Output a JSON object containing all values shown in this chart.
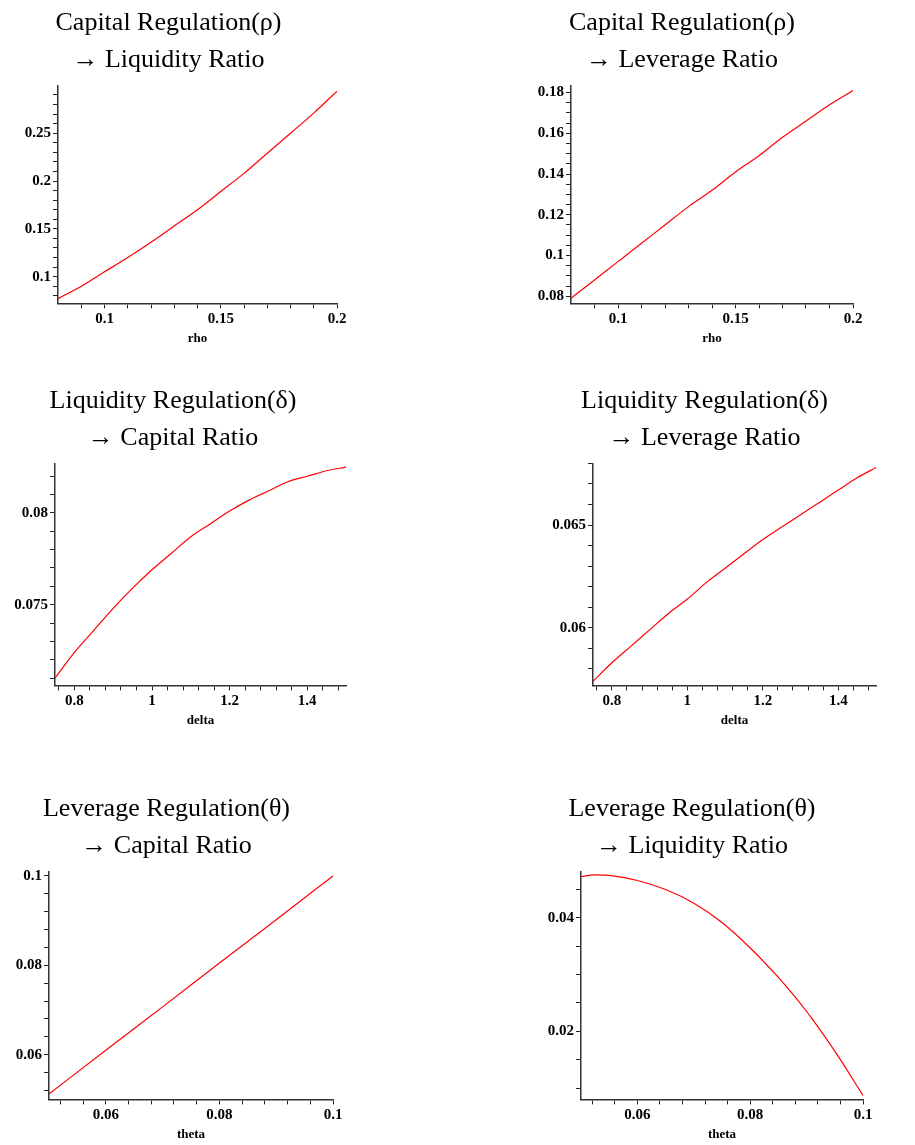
{
  "chart_data": [
    {
      "type": "line",
      "title": "Capital Regulation(ρ)\n→ Liquidity Ratio",
      "xlabel": "rho",
      "color": "#ff0000",
      "xlim": [
        0.08,
        0.2
      ],
      "xticks": [
        {
          "value": 0.09,
          "label": null
        },
        0.1,
        {
          "value": 0.11,
          "label": null
        },
        {
          "value": 0.12,
          "label": null
        },
        {
          "value": 0.13,
          "label": null
        },
        {
          "value": 0.14,
          "label": null
        },
        0.15,
        {
          "value": 0.16,
          "label": null
        },
        {
          "value": 0.17,
          "label": null
        },
        {
          "value": 0.18,
          "label": null
        },
        {
          "value": 0.19,
          "label": null
        },
        0.2
      ],
      "ylim": [
        0.072,
        0.3
      ],
      "yticks": [
        {
          "value": 0.08,
          "label": null
        },
        {
          "value": 0.09,
          "label": null
        },
        0.1,
        {
          "value": 0.11,
          "label": null
        },
        {
          "value": 0.12,
          "label": null
        },
        {
          "value": 0.13,
          "label": null
        },
        {
          "value": 0.14,
          "label": null
        },
        0.15,
        {
          "value": 0.16,
          "label": null
        },
        {
          "value": 0.17,
          "label": null
        },
        {
          "value": 0.18,
          "label": null
        },
        {
          "value": 0.19,
          "label": null
        },
        0.2,
        {
          "value": 0.21,
          "label": null
        },
        {
          "value": 0.22,
          "label": null
        },
        {
          "value": 0.23,
          "label": null
        },
        {
          "value": 0.24,
          "label": null
        },
        0.25,
        {
          "value": 0.26,
          "label": null
        },
        {
          "value": 0.27,
          "label": null
        },
        {
          "value": 0.28,
          "label": null
        },
        {
          "value": 0.29,
          "label": null
        }
      ],
      "x": [
        0.08,
        0.09,
        0.1,
        0.11,
        0.12,
        0.13,
        0.14,
        0.15,
        0.16,
        0.17,
        0.18,
        0.19,
        0.2
      ],
      "values": [
        0.077,
        0.09,
        0.105,
        0.12,
        0.136,
        0.153,
        0.17,
        0.189,
        0.208,
        0.229,
        0.25,
        0.271,
        0.294
      ]
    },
    {
      "type": "line",
      "title": "Capital Regulation(ρ)\n→ Leverage Ratio",
      "xlabel": "rho",
      "color": "#ff0000",
      "xlim": [
        0.08,
        0.2
      ],
      "xticks": [
        {
          "value": 0.09,
          "label": null
        },
        0.1,
        {
          "value": 0.11,
          "label": null
        },
        {
          "value": 0.12,
          "label": null
        },
        {
          "value": 0.13,
          "label": null
        },
        {
          "value": 0.14,
          "label": null
        },
        0.15,
        {
          "value": 0.16,
          "label": null
        },
        {
          "value": 0.17,
          "label": null
        },
        {
          "value": 0.18,
          "label": null
        },
        {
          "value": 0.19,
          "label": null
        },
        0.2
      ],
      "ylim": [
        0.0765,
        0.1835
      ],
      "yticks": [
        0.08,
        {
          "value": 0.085,
          "label": null
        },
        {
          "value": 0.09,
          "label": null
        },
        {
          "value": 0.095,
          "label": null
        },
        0.1,
        {
          "value": 0.105,
          "label": null
        },
        {
          "value": 0.11,
          "label": null
        },
        {
          "value": 0.115,
          "label": null
        },
        0.12,
        {
          "value": 0.125,
          "label": null
        },
        {
          "value": 0.13,
          "label": null
        },
        {
          "value": 0.135,
          "label": null
        },
        0.14,
        {
          "value": 0.145,
          "label": null
        },
        {
          "value": 0.15,
          "label": null
        },
        {
          "value": 0.155,
          "label": null
        },
        0.16,
        {
          "value": 0.165,
          "label": null
        },
        {
          "value": 0.17,
          "label": null
        },
        {
          "value": 0.175,
          "label": null
        },
        0.18
      ],
      "x": [
        0.08,
        0.09,
        0.1,
        0.11,
        0.12,
        0.13,
        0.14,
        0.15,
        0.16,
        0.17,
        0.18,
        0.19,
        0.2
      ],
      "values": [
        0.079,
        0.088,
        0.097,
        0.106,
        0.115,
        0.124,
        0.132,
        0.141,
        0.149,
        0.158,
        0.166,
        0.174,
        0.181
      ]
    },
    {
      "type": "line",
      "title": "Liquidity Regulation(δ)\n→ Capital Ratio",
      "xlabel": "delta",
      "color": "#ff0000",
      "xlim": [
        0.75,
        1.5
      ],
      "xticks": [
        {
          "value": 0.76,
          "label": null
        },
        0.8,
        {
          "value": 0.84,
          "label": null
        },
        {
          "value": 0.88,
          "label": null
        },
        {
          "value": 0.92,
          "label": null
        },
        {
          "value": 0.96,
          "label": null
        },
        1,
        {
          "value": 1.04,
          "label": null
        },
        {
          "value": 1.08,
          "label": null
        },
        {
          "value": 1.12,
          "label": null
        },
        {
          "value": 1.16,
          "label": null
        },
        1.2,
        {
          "value": 1.24,
          "label": null
        },
        {
          "value": 1.28,
          "label": null
        },
        {
          "value": 1.32,
          "label": null
        },
        {
          "value": 1.36,
          "label": null
        },
        1.4,
        {
          "value": 1.44,
          "label": null
        },
        {
          "value": 1.48,
          "label": null
        }
      ],
      "ylim": [
        0.0706,
        0.0827
      ],
      "yticks": [
        {
          "value": 0.071,
          "label": null
        },
        {
          "value": 0.072,
          "label": null
        },
        {
          "value": 0.073,
          "label": null
        },
        {
          "value": 0.074,
          "label": null
        },
        0.075,
        {
          "value": 0.076,
          "label": null
        },
        {
          "value": 0.077,
          "label": null
        },
        {
          "value": 0.078,
          "label": null
        },
        {
          "value": 0.079,
          "label": null
        },
        0.08,
        {
          "value": 0.081,
          "label": null
        },
        {
          "value": 0.082,
          "label": null
        }
      ],
      "x": [
        0.75,
        0.8,
        0.85,
        0.9,
        0.95,
        1,
        1.05,
        1.1,
        1.15,
        1.2,
        1.25,
        1.3,
        1.35,
        1.4,
        1.45,
        1.5
      ],
      "values": [
        0.071,
        0.0724,
        0.0736,
        0.0748,
        0.0759,
        0.0769,
        0.0778,
        0.0787,
        0.0794,
        0.0801,
        0.0807,
        0.0812,
        0.0817,
        0.082,
        0.0823,
        0.0825
      ]
    },
    {
      "type": "line",
      "title": "Liquidity Regulation(δ)\n→ Leverage Ratio",
      "xlabel": "delta",
      "color": "#ff0000",
      "xlim": [
        0.75,
        1.5
      ],
      "xticks": [
        {
          "value": 0.76,
          "label": null
        },
        0.8,
        {
          "value": 0.84,
          "label": null
        },
        {
          "value": 0.88,
          "label": null
        },
        {
          "value": 0.92,
          "label": null
        },
        {
          "value": 0.96,
          "label": null
        },
        1,
        {
          "value": 1.04,
          "label": null
        },
        {
          "value": 1.08,
          "label": null
        },
        {
          "value": 1.12,
          "label": null
        },
        {
          "value": 1.16,
          "label": null
        },
        1.2,
        {
          "value": 1.24,
          "label": null
        },
        {
          "value": 1.28,
          "label": null
        },
        {
          "value": 1.32,
          "label": null
        },
        {
          "value": 1.36,
          "label": null
        },
        1.4,
        {
          "value": 1.44,
          "label": null
        },
        {
          "value": 1.48,
          "label": null
        }
      ],
      "ylim": [
        0.0572,
        0.068
      ],
      "yticks": [
        {
          "value": 0.058,
          "label": null
        },
        {
          "value": 0.059,
          "label": null
        },
        0.06,
        {
          "value": 0.061,
          "label": null
        },
        {
          "value": 0.062,
          "label": null
        },
        {
          "value": 0.063,
          "label": null
        },
        {
          "value": 0.064,
          "label": null
        },
        0.065,
        {
          "value": 0.066,
          "label": null
        },
        {
          "value": 0.067,
          "label": null
        },
        {
          "value": 0.068,
          "label": null
        }
      ],
      "x": [
        0.75,
        0.8,
        0.85,
        0.9,
        0.95,
        1,
        1.05,
        1.1,
        1.15,
        1.2,
        1.25,
        1.3,
        1.35,
        1.4,
        1.45,
        1.5
      ],
      "values": [
        0.0574,
        0.0583,
        0.0591,
        0.0599,
        0.0607,
        0.0614,
        0.0622,
        0.0629,
        0.0636,
        0.0643,
        0.0649,
        0.0655,
        0.0661,
        0.0667,
        0.0673,
        0.0678
      ]
    },
    {
      "type": "line",
      "title": "Leverage Regulation(θ)\n→ Capital Ratio",
      "xlabel": "theta",
      "color": "#ff0000",
      "xlim": [
        0.05,
        0.1
      ],
      "xticks": [
        {
          "value": 0.052,
          "label": null
        },
        {
          "value": 0.056,
          "label": null
        },
        0.06,
        {
          "value": 0.064,
          "label": null
        },
        {
          "value": 0.068,
          "label": null
        },
        {
          "value": 0.072,
          "label": null
        },
        {
          "value": 0.076,
          "label": null
        },
        0.08,
        {
          "value": 0.084,
          "label": null
        },
        {
          "value": 0.088,
          "label": null
        },
        {
          "value": 0.092,
          "label": null
        },
        {
          "value": 0.096,
          "label": null
        },
        0.1
      ],
      "ylim": [
        0.05,
        0.101
      ],
      "yticks": [
        {
          "value": 0.052,
          "label": null
        },
        {
          "value": 0.056,
          "label": null
        },
        0.06,
        {
          "value": 0.064,
          "label": null
        },
        {
          "value": 0.068,
          "label": null
        },
        {
          "value": 0.072,
          "label": null
        },
        {
          "value": 0.076,
          "label": null
        },
        0.08,
        {
          "value": 0.084,
          "label": null
        },
        {
          "value": 0.088,
          "label": null
        },
        {
          "value": 0.092,
          "label": null
        },
        {
          "value": 0.096,
          "label": null
        },
        0.1
      ],
      "x": [
        0.05,
        0.06,
        0.07,
        0.08,
        0.09,
        0.1
      ],
      "values": [
        0.0512,
        0.061,
        0.0707,
        0.0805,
        0.0902,
        0.1
      ]
    },
    {
      "type": "line",
      "title": "Leverage Regulation(θ)\n→ Liquidity Ratio",
      "xlabel": "theta",
      "color": "#ff0000",
      "xlim": [
        0.05,
        0.1
      ],
      "xticks": [
        {
          "value": 0.052,
          "label": null
        },
        {
          "value": 0.056,
          "label": null
        },
        0.06,
        {
          "value": 0.064,
          "label": null
        },
        {
          "value": 0.068,
          "label": null
        },
        {
          "value": 0.072,
          "label": null
        },
        {
          "value": 0.076,
          "label": null
        },
        0.08,
        {
          "value": 0.084,
          "label": null
        },
        {
          "value": 0.088,
          "label": null
        },
        {
          "value": 0.092,
          "label": null
        },
        {
          "value": 0.096,
          "label": null
        },
        0.1
      ],
      "ylim": [
        0.008,
        0.0482
      ],
      "yticks": [
        {
          "value": 0.01,
          "label": null
        },
        {
          "value": 0.015,
          "label": null
        },
        0.02,
        {
          "value": 0.025,
          "label": null
        },
        {
          "value": 0.03,
          "label": null
        },
        {
          "value": 0.035,
          "label": null
        },
        0.04,
        {
          "value": 0.045,
          "label": null
        }
      ],
      "x": [
        0.05,
        0.0525,
        0.055,
        0.06,
        0.065,
        0.07,
        0.075,
        0.08,
        0.085,
        0.09,
        0.095,
        0.1
      ],
      "values": [
        0.0473,
        0.0476,
        0.0475,
        0.0466,
        0.045,
        0.0426,
        0.0392,
        0.0347,
        0.0295,
        0.0235,
        0.0165,
        0.0087
      ]
    }
  ]
}
